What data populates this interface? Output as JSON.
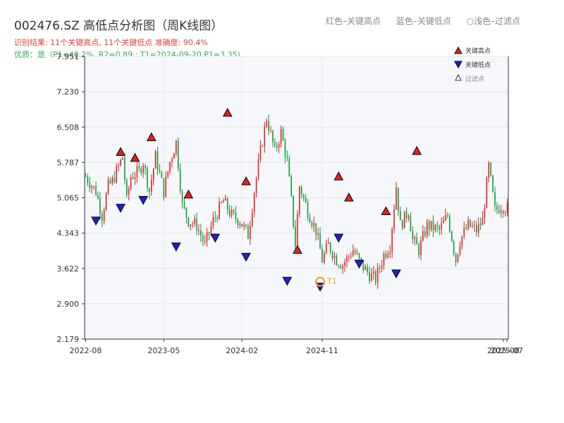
{
  "header": {
    "title": "002476.SZ 高低点分析图（周K线图）",
    "result_line": "识别结果: 11个关键高点, 11个关键低点   准确度: 90.4%",
    "quality_line": "优质：是（P1=40.2%, R2=0.89 ; T1=2024-09-20 P1=3.35)"
  },
  "top_legend": {
    "red": "红色–关键高点",
    "blue": "蓝色–关键低点",
    "light": "○浅色–过滤点"
  },
  "legend": {
    "high": "关键高点",
    "low": "关键低点",
    "filtered": "过滤点"
  },
  "colors": {
    "up": "#e02020",
    "down": "#129a3a",
    "high_marker": "#e52020",
    "low_marker": "#1f1fd6",
    "t1": "#f0a020",
    "grid": "#e4e8ee",
    "plot_bg": "#f5f7fa"
  },
  "chart_data": {
    "type": "candlestick",
    "title": "002476.SZ 高低点分析图（周K线图）",
    "period": "weekly",
    "ylim": [
      2.179,
      7.951
    ],
    "y_ticks": [
      "2.179",
      "2.900",
      "3.622",
      "4.343",
      "5.065",
      "5.787",
      "6.508",
      "7.230",
      "7.951"
    ],
    "x_ticks": [
      "2022-08",
      "2023-05",
      "2024-02",
      "2024-11",
      "2025-08",
      "2025-07"
    ],
    "grid": true,
    "legend_position": "top-right",
    "anchors": [
      {
        "week": 0,
        "price": 5.5
      },
      {
        "week": 5,
        "price": 5.2
      },
      {
        "week": 8,
        "price": 4.7
      },
      {
        "week": 11,
        "price": 5.3
      },
      {
        "week": 13,
        "price": 5.4
      },
      {
        "week": 18,
        "price": 5.9
      },
      {
        "week": 20,
        "price": 5.0
      },
      {
        "week": 22,
        "price": 5.5
      },
      {
        "week": 26,
        "price": 5.6
      },
      {
        "week": 28,
        "price": 5.8
      },
      {
        "week": 31,
        "price": 5.2
      },
      {
        "week": 34,
        "price": 5.9
      },
      {
        "week": 38,
        "price": 5.2
      },
      {
        "week": 41,
        "price": 5.8
      },
      {
        "week": 44,
        "price": 6.2
      },
      {
        "week": 47,
        "price": 4.9
      },
      {
        "week": 50,
        "price": 4.6
      },
      {
        "week": 54,
        "price": 4.5
      },
      {
        "week": 58,
        "price": 4.1
      },
      {
        "week": 62,
        "price": 4.6
      },
      {
        "week": 67,
        "price": 5.0
      },
      {
        "week": 71,
        "price": 4.7
      },
      {
        "week": 75,
        "price": 4.6
      },
      {
        "week": 79,
        "price": 4.3
      },
      {
        "week": 82,
        "price": 5.2
      },
      {
        "week": 85,
        "price": 6.0
      },
      {
        "week": 88,
        "price": 6.7
      },
      {
        "week": 92,
        "price": 6.0
      },
      {
        "week": 95,
        "price": 6.4
      },
      {
        "week": 98,
        "price": 5.8
      },
      {
        "week": 100,
        "price": 5.0
      },
      {
        "week": 102,
        "price": 4.1
      },
      {
        "week": 104,
        "price": 5.3
      },
      {
        "week": 108,
        "price": 4.8
      },
      {
        "week": 112,
        "price": 4.4
      },
      {
        "week": 115,
        "price": 3.8
      },
      {
        "week": 118,
        "price": 4.1
      },
      {
        "week": 122,
        "price": 3.8
      },
      {
        "week": 125,
        "price": 3.7
      },
      {
        "week": 130,
        "price": 4.0
      },
      {
        "week": 134,
        "price": 3.7
      },
      {
        "week": 138,
        "price": 3.5
      },
      {
        "week": 141,
        "price": 3.4
      },
      {
        "week": 145,
        "price": 3.9
      },
      {
        "week": 148,
        "price": 4.1
      },
      {
        "week": 151,
        "price": 5.3
      },
      {
        "week": 153,
        "price": 4.5
      },
      {
        "week": 157,
        "price": 4.8
      },
      {
        "week": 159,
        "price": 4.2
      },
      {
        "week": 162,
        "price": 4.0
      },
      {
        "week": 166,
        "price": 4.5
      },
      {
        "week": 172,
        "price": 4.4
      },
      {
        "week": 176,
        "price": 4.7
      },
      {
        "week": 180,
        "price": 3.8
      },
      {
        "week": 182,
        "price": 4.2
      },
      {
        "week": 186,
        "price": 4.5
      },
      {
        "week": 190,
        "price": 4.4
      },
      {
        "week": 193,
        "price": 4.6
      },
      {
        "week": 196,
        "price": 5.7
      },
      {
        "week": 199,
        "price": 4.8
      },
      {
        "week": 202,
        "price": 4.9
      },
      {
        "week": 205,
        "price": 4.85
      }
    ],
    "key_highs": [
      {
        "week": 17,
        "price": 5.9
      },
      {
        "week": 24,
        "price": 5.78
      },
      {
        "week": 32,
        "price": 6.2
      },
      {
        "week": 50,
        "price": 5.03
      },
      {
        "week": 69,
        "price": 6.7
      },
      {
        "week": 78,
        "price": 5.3
      },
      {
        "week": 103,
        "price": 3.9
      },
      {
        "week": 123,
        "price": 5.4
      },
      {
        "week": 128,
        "price": 4.97
      },
      {
        "week": 146,
        "price": 4.69
      },
      {
        "week": 161,
        "price": 5.92
      }
    ],
    "key_lows": [
      {
        "week": 5,
        "price": 4.7
      },
      {
        "week": 17,
        "price": 4.96
      },
      {
        "week": 28,
        "price": 5.12
      },
      {
        "week": 44,
        "price": 4.17
      },
      {
        "week": 63,
        "price": 4.35
      },
      {
        "week": 78,
        "price": 3.96
      },
      {
        "week": 98,
        "price": 3.47
      },
      {
        "week": 114,
        "price": 3.35
      },
      {
        "week": 123,
        "price": 4.35
      },
      {
        "week": 133,
        "price": 3.82
      },
      {
        "week": 151,
        "price": 3.62
      }
    ],
    "t1": {
      "label": "T1",
      "week": 114,
      "price": 3.35
    }
  }
}
